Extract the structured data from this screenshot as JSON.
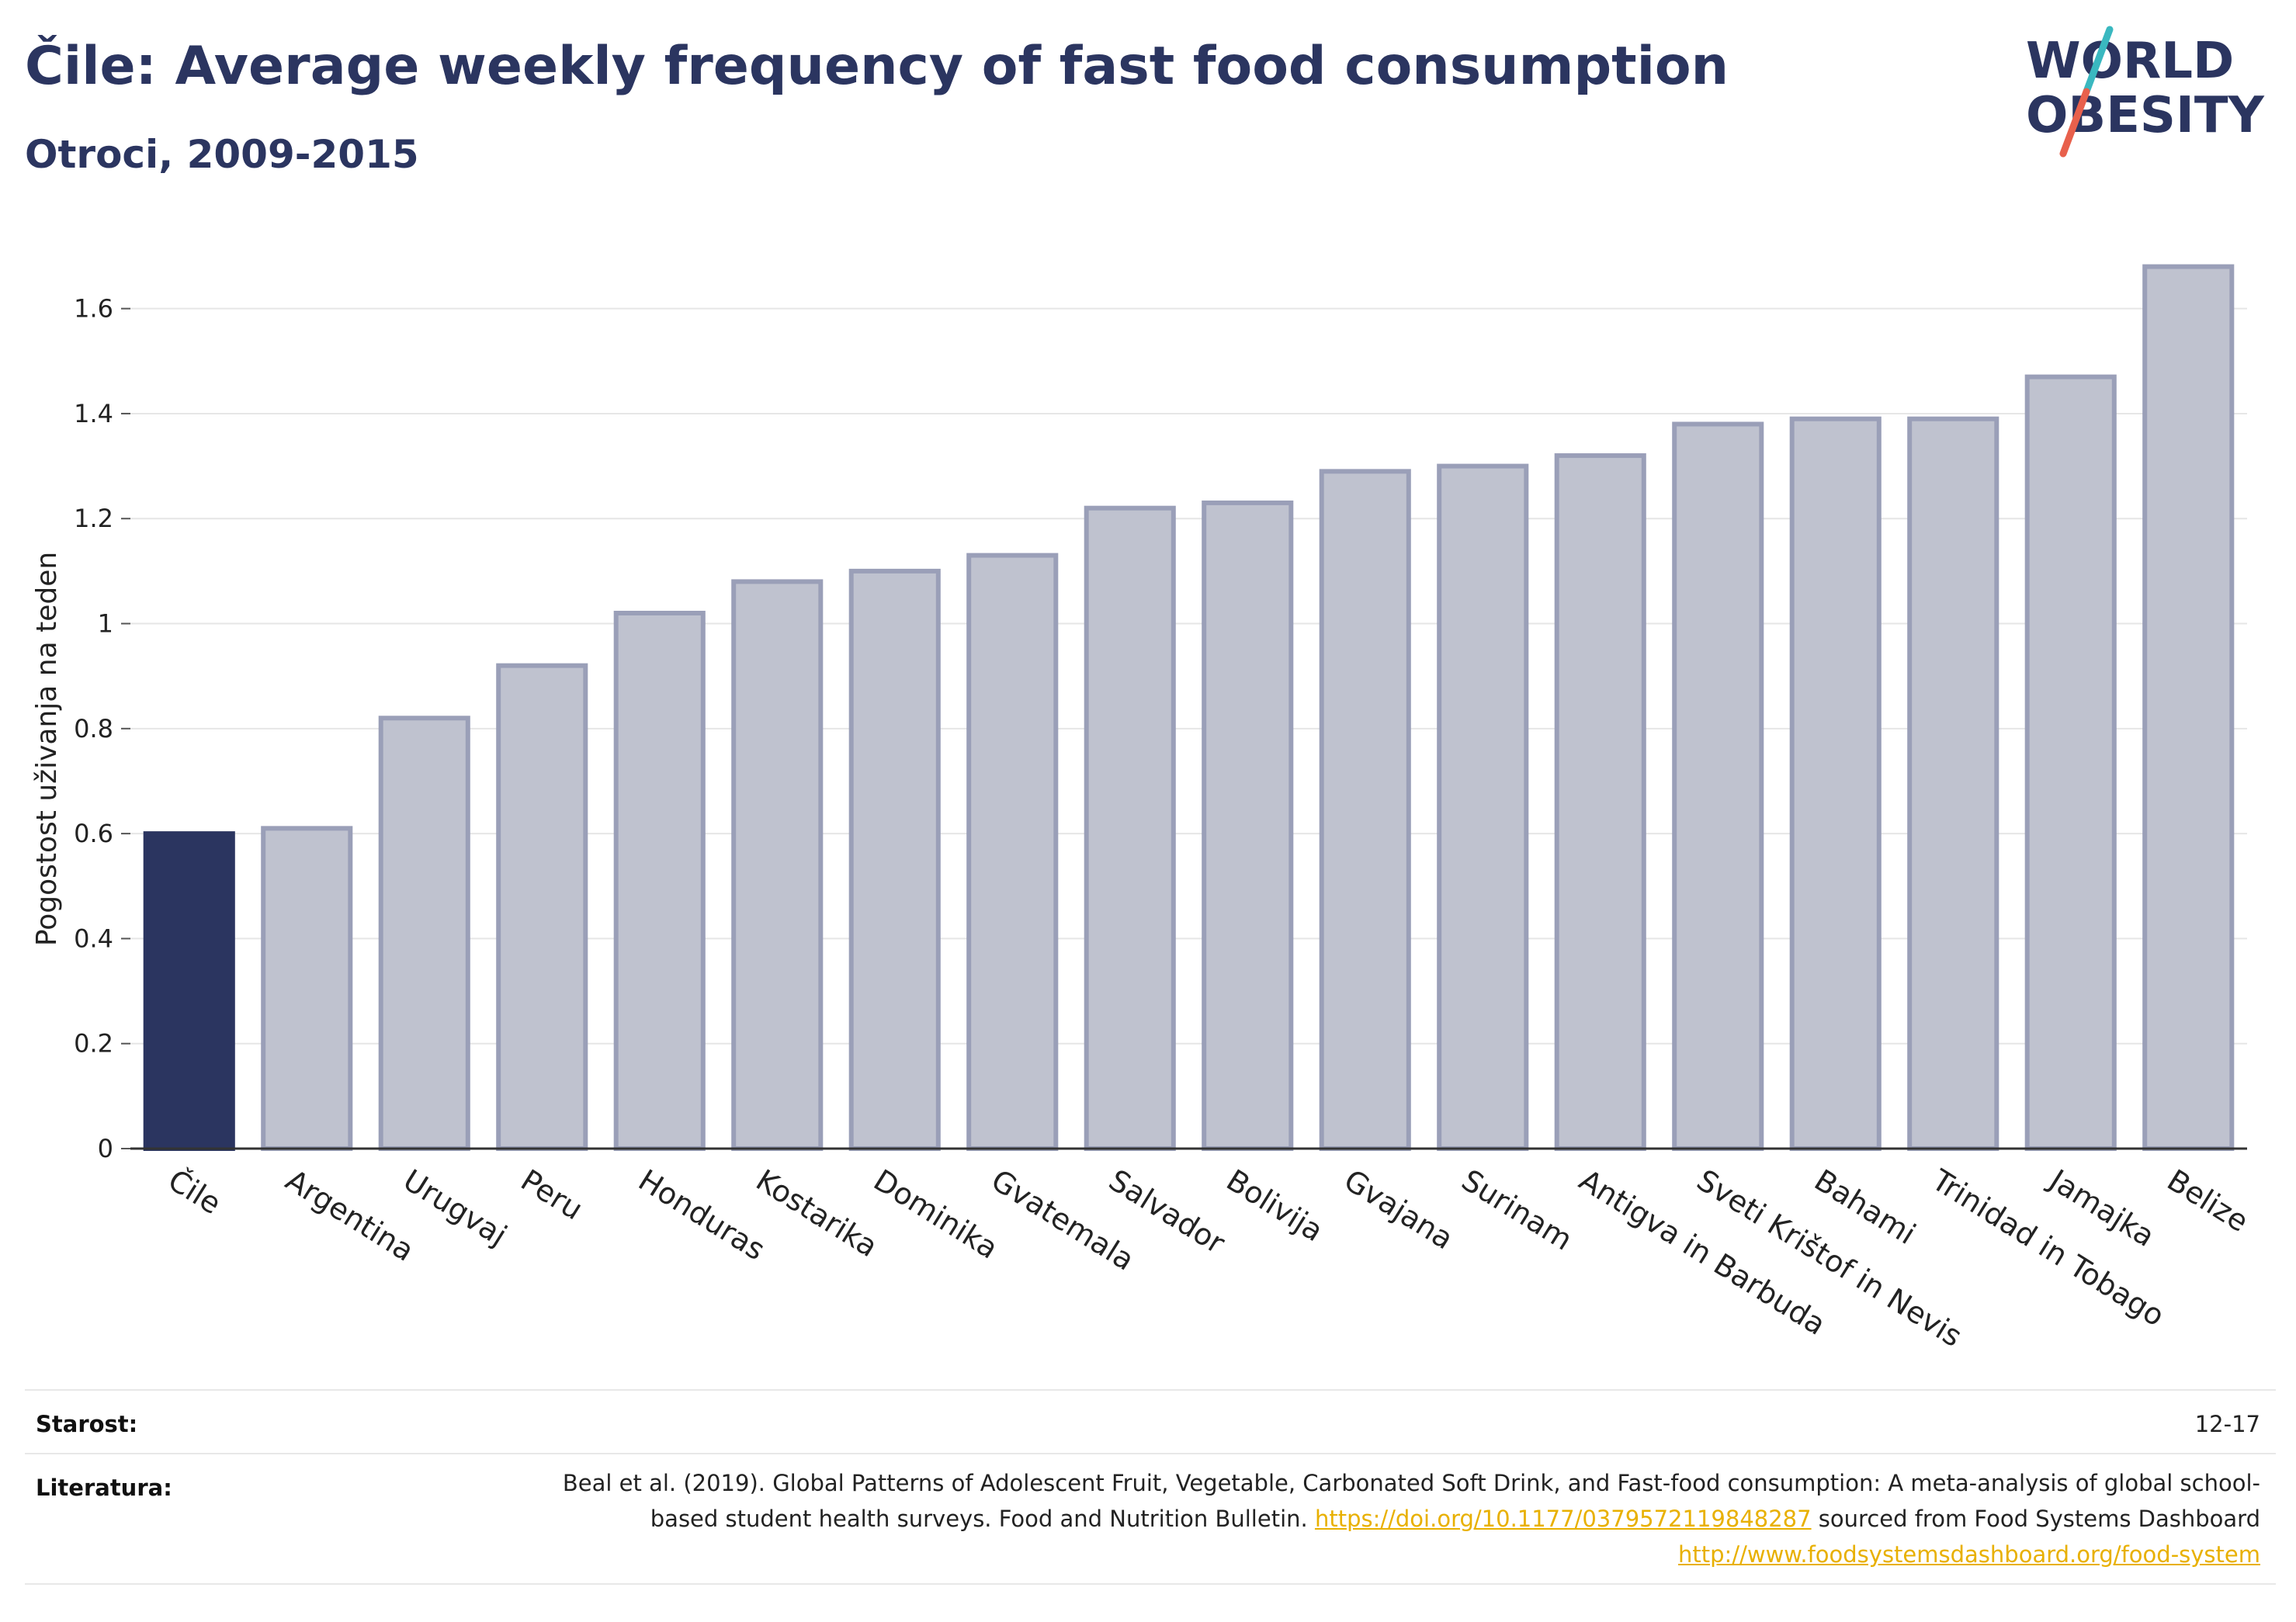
{
  "header": {
    "title": "Čile: Average weekly frequency of fast food consumption",
    "subtitle": "Otroci, 2009-2015"
  },
  "logo": {
    "line1": "WORLD",
    "line2": "OBESITY",
    "colors": {
      "text": "#2b3560",
      "slash_teal": "#3ab8c0",
      "slash_red": "#e8604c"
    }
  },
  "chart_data": {
    "type": "bar",
    "ylabel": "Pogostost uživanja na teden",
    "xlabel": "",
    "ylim": [
      0,
      1.7
    ],
    "yticks": [
      0,
      0.2,
      0.4,
      0.6,
      0.8,
      1,
      1.2,
      1.4,
      1.6
    ],
    "ytick_labels": [
      "0",
      "0.2",
      "0.4",
      "0.6",
      "0.8",
      "1",
      "1.2",
      "1.4",
      "1.6"
    ],
    "grid": true,
    "categories": [
      "Čile",
      "Argentina",
      "Urugvaj",
      "Peru",
      "Honduras",
      "Kostarika",
      "Dominika",
      "Gvatemala",
      "Salvador",
      "Bolivija",
      "Gvajana",
      "Surinam",
      "Antigva in Barbuda",
      "Sveti Krištof in Nevis",
      "Bahami",
      "Trinidad in Tobago",
      "Jamajka",
      "Belize"
    ],
    "values": [
      0.6,
      0.61,
      0.82,
      0.92,
      1.02,
      1.08,
      1.1,
      1.13,
      1.22,
      1.23,
      1.29,
      1.3,
      1.32,
      1.38,
      1.39,
      1.39,
      1.47,
      1.68
    ],
    "highlight_index": 0,
    "colors": {
      "highlight": "#2b3560",
      "bar_fill": "#bfc2cf",
      "bar_stroke": "#9a9fb8"
    }
  },
  "footer": {
    "age_label": "Starost:",
    "age_value": "12-17",
    "reference_label": "Literatura:",
    "reference_text_1": "Beal et al. (2019). Global Patterns of Adolescent Fruit, Vegetable, Carbonated Soft Drink, and Fast-food consumption: A meta-analysis of global school-based student health surveys. Food and Nutrition Bulletin.",
    "reference_link_1": "https://doi.org/10.1177/0379572119848287",
    "reference_text_2": "sourced from Food Systems Dashboard",
    "reference_link_2": "http://www.foodsystemsdashboard.org/food-system"
  }
}
